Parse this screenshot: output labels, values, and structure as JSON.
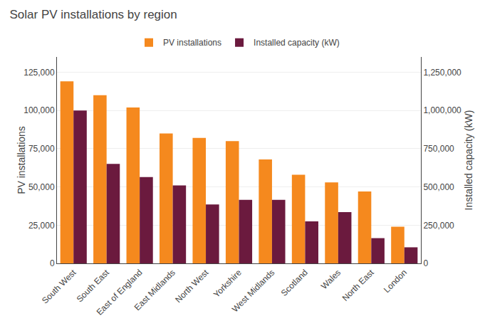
{
  "chart_data": {
    "type": "bar",
    "title": "Solar PV installations by region",
    "categories": [
      "South West",
      "South East",
      "East of England",
      "East Midlands",
      "North West",
      "Yorkshire",
      "West Midlands",
      "Scotland",
      "Wales",
      "North East",
      "London"
    ],
    "series": [
      {
        "name": "PV installations",
        "color": "#F5891E",
        "axis": "y",
        "values": [
          119000,
          110000,
          102000,
          85000,
          82000,
          80000,
          68000,
          58000,
          53000,
          47000,
          24000
        ]
      },
      {
        "name": "Installed capacity (kW)",
        "color": "#6B1A3E",
        "axis": "y2",
        "values": [
          1000000,
          650000,
          565000,
          510000,
          385000,
          415000,
          415000,
          275000,
          335000,
          165000,
          105000
        ]
      }
    ],
    "ylabel": "PV installations",
    "y2label": "Installed capacity (kW)",
    "ylim": [
      0,
      135000
    ],
    "yticks": [
      0,
      {
        "value": 25000,
        "label": "25,000"
      },
      {
        "value": 50000,
        "label": "50,000"
      },
      {
        "value": 75000,
        "label": "75,000"
      },
      {
        "value": 100000,
        "label": "100,000"
      },
      {
        "value": 125000,
        "label": "125,000"
      }
    ],
    "y2lim": [
      0,
      1350000
    ],
    "y2ticks": [
      0,
      {
        "value": 250000,
        "label": "250,000"
      },
      {
        "value": 500000,
        "label": "500,000"
      },
      {
        "value": 750000,
        "label": "750,000"
      },
      {
        "value": 1000000,
        "label": "1,000,000"
      },
      {
        "value": 1250000,
        "label": "1,250,000"
      }
    ],
    "grid": true,
    "legend": "top"
  }
}
